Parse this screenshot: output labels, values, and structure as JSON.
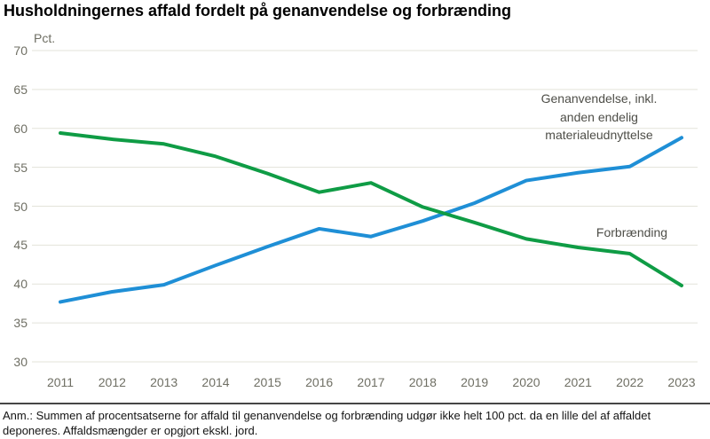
{
  "page": {
    "title": "Husholdningernes affald fordelt på genanvendelse og forbrænding",
    "footnote": "Anm.: Summen af procentsatserne for affald til genanvendelse og forbrænding udgør ikke helt 100 pct. da en lille del af affaldet deponeres. Affaldsmængder er opgjort ekskl. jord."
  },
  "chart_data": {
    "type": "line",
    "title": "Husholdningernes affald fordelt på genanvendelse og forbrænding",
    "unit_label": "Pct.",
    "x": [
      2011,
      2012,
      2013,
      2014,
      2015,
      2016,
      2017,
      2018,
      2019,
      2020,
      2021,
      2022,
      2023
    ],
    "series": [
      {
        "name": "Genanvendelse, inkl. anden endelig materialeudnyttelse",
        "label_lines": "Genanvendelse, inkl.\nanden endelig\nmaterialeudnyttelse",
        "color": "#1F8FD6",
        "values": [
          37.7,
          39.0,
          39.9,
          42.4,
          44.8,
          47.1,
          46.1,
          48.1,
          50.4,
          53.3,
          54.3,
          55.1,
          58.8
        ]
      },
      {
        "name": "Forbrænding",
        "label_lines": "Forbrænding",
        "color": "#0F9C45",
        "values": [
          59.4,
          58.6,
          58.0,
          56.4,
          54.2,
          51.8,
          53.0,
          49.9,
          47.9,
          45.8,
          44.7,
          43.9,
          39.8
        ]
      }
    ],
    "ylim": [
      30,
      70
    ],
    "yticks": [
      70,
      65,
      60,
      55,
      50,
      45,
      40,
      35,
      30
    ],
    "grid": "horizontal",
    "gridline_color": "#e3e3da",
    "legend_position": "inline-right"
  }
}
